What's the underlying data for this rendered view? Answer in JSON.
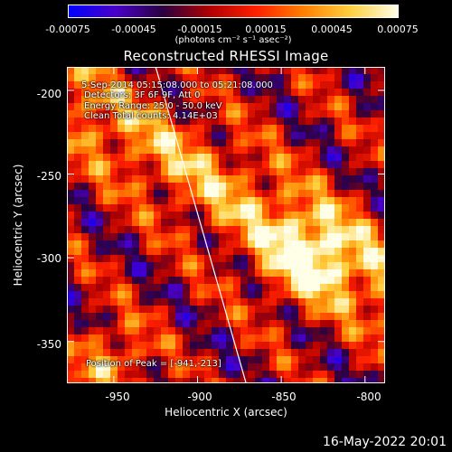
{
  "colorbar": {
    "tick_labels": [
      "-0.00075",
      "-0.00045",
      "-0.00015",
      "0.00015",
      "0.00045",
      "0.00075"
    ],
    "units_label": "(photons cm⁻² s⁻¹ asec⁻²)",
    "colors": [
      "#0000ff",
      "#4a00c8",
      "#2a0040",
      "#b00000",
      "#ff2000",
      "#ff8000",
      "#ffd040",
      "#ffffe8"
    ]
  },
  "plot": {
    "title": "Reconstructed RHESSI Image",
    "annotations": {
      "time_range": "5-Sep-2014 05:15:08.000 to 05:21:08.000",
      "detectors": "Detectors: 3F 6F 9F, Att 0",
      "energy": "Energy Range: 25.0 - 50.0 keV",
      "clean": "Clean   Total counts: 4.14E+03",
      "peak": "Position of Peak = [-941,-213]"
    },
    "xlabel": "Heliocentric X (arcsec)",
    "ylabel": "Heliocentric Y (arcsec)",
    "xticks": [
      "-950",
      "-900",
      "-850",
      "-800"
    ],
    "yticks": [
      "-200",
      "-250",
      "-300",
      "-350"
    ],
    "xlim": [
      -978,
      -788
    ],
    "ylim": [
      -375,
      -186
    ],
    "xtick_values": [
      -950,
      -900,
      -850,
      -800
    ],
    "ytick_values": [
      -200,
      -250,
      -300,
      -350
    ],
    "limb_line": {
      "from": [
        -925,
        -186
      ],
      "to": [
        -871,
        -375
      ]
    },
    "colormap": "hot-blue diverging",
    "peak_position": [
      -941,
      -213
    ]
  },
  "footer": {
    "date": "16-May-2022 20:01"
  }
}
